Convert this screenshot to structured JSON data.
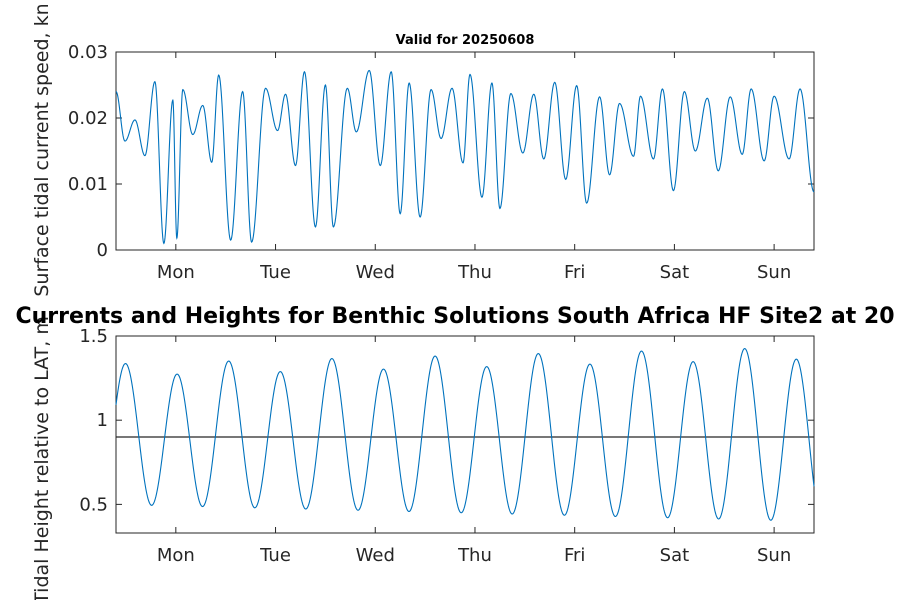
{
  "figure_title": "Currents and Heights for Benthic Solutions South Africa HF Site2 at 20",
  "colors": {
    "series": "#0072BD",
    "reference_line": "#262626",
    "axes": "#262626"
  },
  "chart_data": [
    {
      "type": "line",
      "title": "Valid for 20250608",
      "ylabel": "Surface tidal current speed, kn",
      "xlabel": "",
      "x_tick_labels": [
        "Mon",
        "Tue",
        "Wed",
        "Thu",
        "Fri",
        "Sat",
        "Sun"
      ],
      "x_tick_day": [
        1,
        2,
        3,
        4,
        5,
        6,
        7
      ],
      "xlim_days": [
        0.4,
        7.4
      ],
      "ylim": [
        0,
        0.03
      ],
      "y_ticks": [
        0,
        0.01,
        0.02,
        0.03
      ],
      "y_tick_labels": [
        "0",
        "0.01",
        "0.02",
        "0.03"
      ],
      "grid": false,
      "series": [
        {
          "x_days": [
            0.4,
            0.49,
            0.59,
            0.69,
            0.79,
            0.88,
            0.97,
            1.01,
            1.07,
            1.17,
            1.27,
            1.36,
            1.43,
            1.55,
            1.67,
            1.76,
            1.9,
            2.02,
            2.1,
            2.2,
            2.29,
            2.4,
            2.5,
            2.58,
            2.72,
            2.81,
            2.94,
            3.05,
            3.16,
            3.25,
            3.34,
            3.45,
            3.56,
            3.66,
            3.77,
            3.88,
            3.95,
            4.07,
            4.17,
            4.25,
            4.36,
            4.48,
            4.59,
            4.69,
            4.8,
            4.91,
            5.02,
            5.12,
            5.25,
            5.35,
            5.45,
            5.59,
            5.66,
            5.79,
            5.88,
            5.99,
            6.1,
            6.21,
            6.33,
            6.44,
            6.56,
            6.68,
            6.77,
            6.9,
            7.0,
            7.15,
            7.26,
            7.4
          ],
          "y": [
            0.024,
            0.0165,
            0.0197,
            0.0143,
            0.0255,
            0.001,
            0.0227,
            0.0018,
            0.0243,
            0.0175,
            0.0219,
            0.0133,
            0.0265,
            0.0015,
            0.024,
            0.0012,
            0.0245,
            0.0181,
            0.0236,
            0.0128,
            0.027,
            0.0035,
            0.025,
            0.0035,
            0.0245,
            0.0179,
            0.0272,
            0.0128,
            0.027,
            0.0055,
            0.0253,
            0.005,
            0.0243,
            0.0169,
            0.0245,
            0.0132,
            0.0266,
            0.008,
            0.0253,
            0.0063,
            0.0237,
            0.0147,
            0.0236,
            0.0138,
            0.0254,
            0.0107,
            0.0249,
            0.0071,
            0.0232,
            0.0114,
            0.0222,
            0.0142,
            0.0233,
            0.0138,
            0.0244,
            0.009,
            0.024,
            0.015,
            0.023,
            0.012,
            0.0232,
            0.0145,
            0.0244,
            0.0135,
            0.0233,
            0.0138,
            0.0244,
            0.0088
          ]
        }
      ]
    },
    {
      "type": "line",
      "title": "",
      "ylabel": "Tidal Height relative to LAT, m",
      "xlabel": "",
      "x_tick_labels": [
        "Mon",
        "Tue",
        "Wed",
        "Thu",
        "Fri",
        "Sat",
        "Sun"
      ],
      "x_tick_day": [
        1,
        2,
        3,
        4,
        5,
        6,
        7
      ],
      "xlim_days": [
        0.4,
        7.4
      ],
      "ylim": [
        0.33,
        1.5
      ],
      "y_ticks": [
        0.5,
        1,
        1.5
      ],
      "y_tick_labels": [
        "0.5",
        "1",
        "1.5"
      ],
      "grid": false,
      "reference_value": 0.9,
      "tide": {
        "period_days": 0.5175,
        "phase_high_day": 0.495,
        "mean": 0.9,
        "amp_start": 0.4,
        "amp_end": 0.5,
        "diurnal_amp": 0.035
      }
    }
  ]
}
